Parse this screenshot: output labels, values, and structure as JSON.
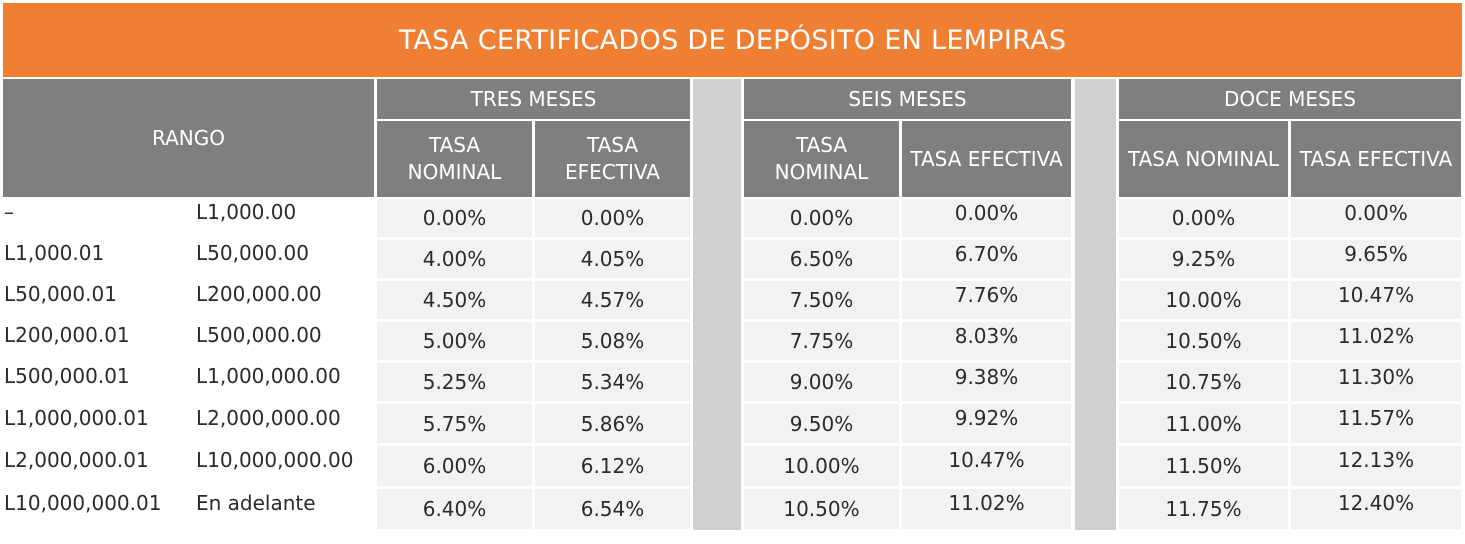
{
  "title": "TASA CERTIFICADOS DE DEPÓSITO EN LEMPIRAS",
  "header": {
    "rango": "RANGO",
    "groups": [
      "TRES MESES",
      "SEIS MESES",
      "DOCE MESES"
    ],
    "sub": [
      [
        "TASA NOMINAL",
        "TASA EFECTIVA"
      ],
      [
        "TASA NOMINAL",
        "TASA EFECTIVA"
      ],
      [
        "TASA NOMINAL",
        "TASA EFECTIVA"
      ]
    ]
  },
  "rows": [
    {
      "from": "–",
      "to": "L1,000.00",
      "vals": [
        "0.00%",
        "0.00%",
        "0.00%",
        "0.00%",
        "0.00%",
        "0.00%"
      ]
    },
    {
      "from": "L1,000.01",
      "to": "L50,000.00",
      "vals": [
        "4.00%",
        "4.05%",
        "6.50%",
        "6.70%",
        "9.25%",
        "9.65%"
      ]
    },
    {
      "from": "L50,000.01",
      "to": "L200,000.00",
      "vals": [
        "4.50%",
        "4.57%",
        "7.50%",
        "7.76%",
        "10.00%",
        "10.47%"
      ]
    },
    {
      "from": "L200,000.01",
      "to": "L500,000.00",
      "vals": [
        "5.00%",
        "5.08%",
        "7.75%",
        "8.03%",
        "10.50%",
        "11.02%"
      ]
    },
    {
      "from": "L500,000.01",
      "to": "L1,000,000.00",
      "vals": [
        "5.25%",
        "5.34%",
        "9.00%",
        "9.38%",
        "10.75%",
        "11.30%"
      ]
    },
    {
      "from": "L1,000,000.01",
      "to": "L2,000,000.00",
      "vals": [
        "5.75%",
        "5.86%",
        "9.50%",
        "9.92%",
        "11.00%",
        "11.57%"
      ]
    },
    {
      "from": "L2,000,000.01",
      "to": "L10,000,000.00",
      "vals": [
        "6.00%",
        "6.12%",
        "10.00%",
        "10.47%",
        "11.50%",
        "12.13%"
      ]
    },
    {
      "from": "L10,000,000.01",
      "to": "En adelante",
      "vals": [
        "6.40%",
        "6.54%",
        "10.50%",
        "11.02%",
        "11.75%",
        "12.40%"
      ]
    }
  ],
  "colors": {
    "title_bg": "#ee7f33",
    "header_bg": "#7f7f7f",
    "separator": "#d1d0d1",
    "cell_bg": "#f2f2f2"
  }
}
